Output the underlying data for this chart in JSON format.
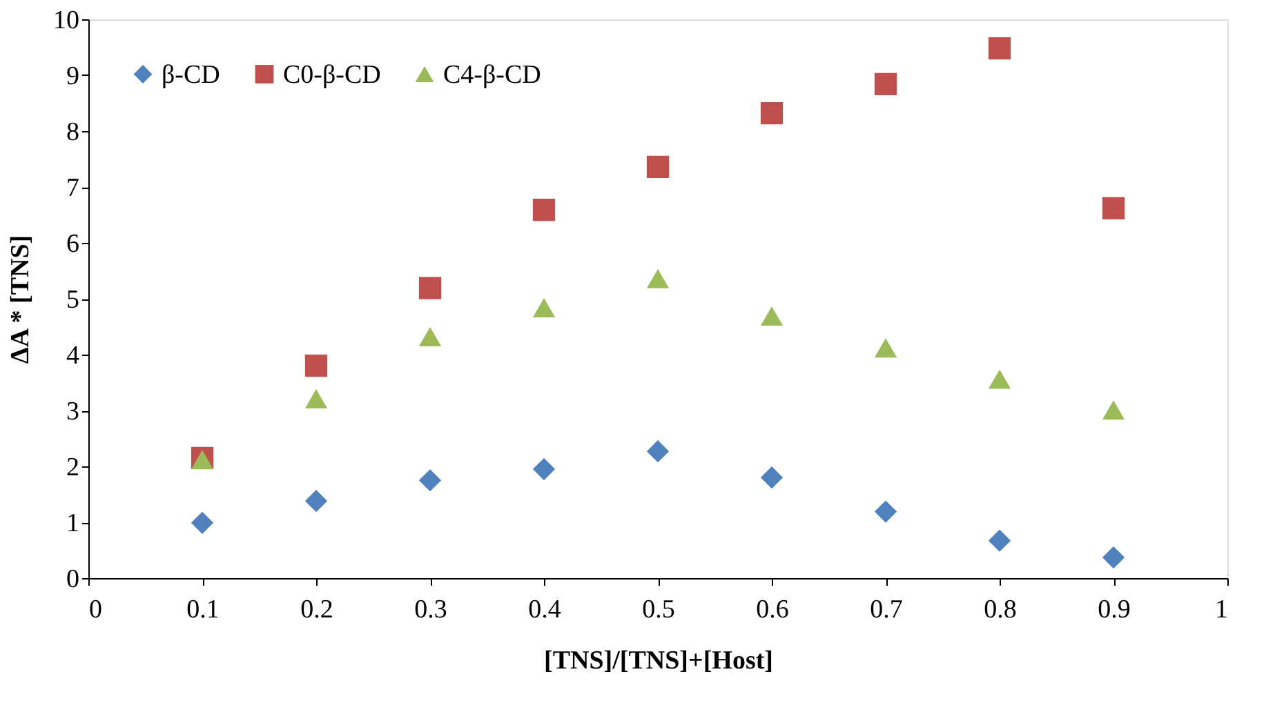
{
  "chart_data": {
    "type": "scatter",
    "xlabel": "[TNS]/[TNS]+[Host]",
    "ylabel": "ΔA *  [TNS]",
    "x": [
      0.1,
      0.2,
      0.3,
      0.4,
      0.5,
      0.6,
      0.7,
      0.8,
      0.9
    ],
    "series": [
      {
        "name": "β-CD",
        "color": "#4f81bd",
        "marker": "diamond",
        "values": [
          0.99,
          1.38,
          1.75,
          1.95,
          2.27,
          1.8,
          1.19,
          0.67,
          0.37
        ]
      },
      {
        "name": "C0-β-CD",
        "color": "#c0504d",
        "marker": "square",
        "values": [
          2.15,
          3.8,
          5.19,
          6.59,
          7.36,
          8.32,
          8.84,
          9.48,
          6.62
        ]
      },
      {
        "name": "C4-β-CD",
        "color": "#9bbb59",
        "marker": "triangle",
        "values": [
          2.12,
          3.21,
          4.32,
          4.84,
          5.36,
          4.69,
          4.12,
          3.56,
          3.01
        ]
      }
    ],
    "xlim": [
      0,
      1
    ],
    "xticks": [
      0,
      0.1,
      0.2,
      0.3,
      0.4,
      0.5,
      0.6,
      0.7,
      0.8,
      0.9,
      1
    ],
    "ylim": [
      0,
      10
    ],
    "yticks": [
      0,
      1,
      2,
      3,
      4,
      5,
      6,
      7,
      8,
      9,
      10
    ],
    "grid": false,
    "legend": "top left"
  }
}
